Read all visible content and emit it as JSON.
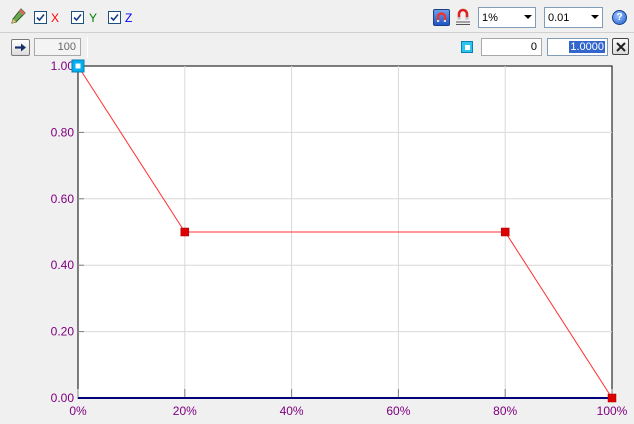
{
  "toolbar": {
    "pencil_icon": "pencil-icon",
    "axes": [
      {
        "label": "X",
        "checked": true,
        "color": "#ff0000"
      },
      {
        "label": "Y",
        "checked": true,
        "color": "#008000"
      },
      {
        "label": "Z",
        "checked": true,
        "color": "#0000ff"
      }
    ],
    "snap_combo_value": "1%",
    "step_combo_value": "0.01",
    "help_icon": "help-icon"
  },
  "point_editor": {
    "apply_icon": "arrow-right-icon",
    "count_value": "100",
    "point_x_value": "0",
    "point_y_value": "1.0000",
    "close_icon": "close-icon"
  },
  "chart_data": {
    "type": "line",
    "x": [
      0,
      20,
      80,
      100
    ],
    "y": [
      1.0,
      0.5,
      0.5,
      0.0
    ],
    "xlim": [
      0,
      100
    ],
    "ylim": [
      0,
      1
    ],
    "x_ticks": [
      "0%",
      "20%",
      "40%",
      "60%",
      "80%",
      "100%"
    ],
    "y_ticks": [
      "0.00",
      "0.20",
      "0.40",
      "0.60",
      "0.80",
      "1.00"
    ],
    "selected_point_index": 0,
    "grid": true,
    "colors": {
      "line": "#ff3030",
      "point": "#dd0000",
      "selected": "#00b0f0",
      "tick_text": "#800080"
    }
  }
}
